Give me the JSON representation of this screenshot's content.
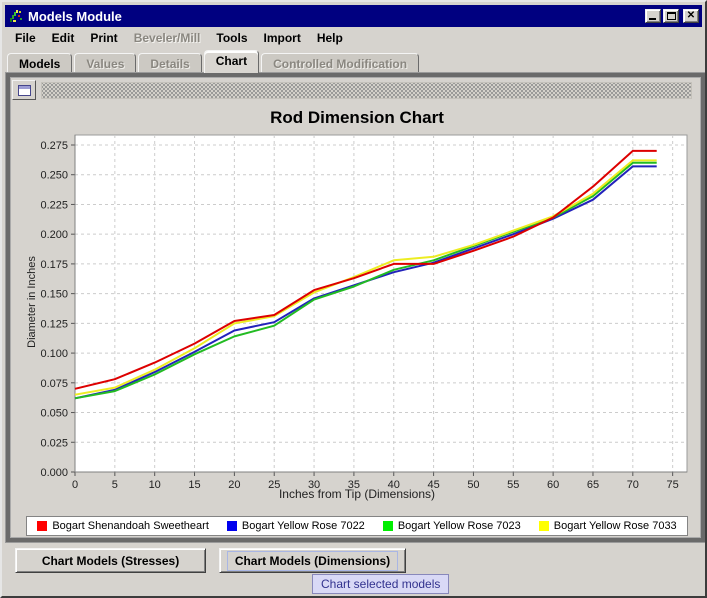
{
  "window": {
    "title": "Models Module"
  },
  "icons": {
    "app": "fly-rod-icon",
    "minimize": "minimize-icon",
    "maximize": "maximize-icon",
    "close_glyph": "✕",
    "toolbar_window": "window-icon"
  },
  "menu": {
    "items": [
      {
        "label": "File",
        "enabled": true
      },
      {
        "label": "Edit",
        "enabled": true
      },
      {
        "label": "Print",
        "enabled": true
      },
      {
        "label": "Beveler/Mill",
        "enabled": false
      },
      {
        "label": "Tools",
        "enabled": true
      },
      {
        "label": "Import",
        "enabled": true
      },
      {
        "label": "Help",
        "enabled": true
      }
    ]
  },
  "tabs": [
    {
      "label": "Models",
      "state": "enabled"
    },
    {
      "label": "Values",
      "state": "disabled"
    },
    {
      "label": "Details",
      "state": "disabled"
    },
    {
      "label": "Chart",
      "state": "active"
    },
    {
      "label": "Controlled Modification",
      "state": "disabled"
    }
  ],
  "chart_data": {
    "type": "line",
    "title": "Rod Dimension Chart",
    "xlabel": "Inches from Tip (Dimensions)",
    "ylabel": "Diameter in Inches",
    "xlim": [
      0,
      76.8
    ],
    "ylim": [
      0,
      0.2834
    ],
    "x_ticks": [
      0,
      5,
      10,
      15,
      20,
      25,
      30,
      35,
      40,
      45,
      50,
      55,
      60,
      65,
      70,
      75
    ],
    "y_ticks": [
      0,
      0.025,
      0.05,
      0.075,
      0.1,
      0.125,
      0.15,
      0.175,
      0.2,
      0.225,
      0.25,
      0.275
    ],
    "grid": "dashed",
    "legend_position": "bottom",
    "x": [
      0,
      5,
      10,
      15,
      20,
      25,
      30,
      35,
      40,
      45,
      50,
      55,
      60,
      65,
      70,
      73
    ],
    "series": [
      {
        "name": "Bogart Shenandoah Sweetheart",
        "color": "#dd0000",
        "legend_color": "#ff0000",
        "values": [
          0.07,
          0.078,
          0.092,
          0.108,
          0.127,
          0.132,
          0.153,
          0.163,
          0.175,
          0.175,
          0.186,
          0.198,
          0.214,
          0.24,
          0.27,
          0.27
        ]
      },
      {
        "name": "Bogart Yellow Rose 7022",
        "color": "#2222bb",
        "legend_color": "#0000ee",
        "values": [
          0.062,
          0.069,
          0.084,
          0.101,
          0.119,
          0.126,
          0.146,
          0.157,
          0.168,
          0.176,
          0.188,
          0.2,
          0.213,
          0.229,
          0.257,
          0.257
        ]
      },
      {
        "name": "Bogart Yellow Rose 7023",
        "color": "#22bb22",
        "legend_color": "#00ee00",
        "values": [
          0.062,
          0.068,
          0.082,
          0.099,
          0.114,
          0.123,
          0.145,
          0.156,
          0.17,
          0.178,
          0.19,
          0.202,
          0.214,
          0.232,
          0.26,
          0.26
        ]
      },
      {
        "name": "Bogart Yellow Rose 7033",
        "color": "#eded22",
        "legend_color": "#ffff00",
        "values": [
          0.065,
          0.071,
          0.086,
          0.104,
          0.125,
          0.131,
          0.151,
          0.164,
          0.178,
          0.181,
          0.191,
          0.203,
          0.215,
          0.234,
          0.262,
          0.262
        ]
      }
    ]
  },
  "buttons": [
    {
      "label": "Chart Models (Stresses)",
      "focused": false
    },
    {
      "label": "Chart Models (Dimensions)",
      "focused": true
    }
  ],
  "tooltip": {
    "text": "Chart selected models"
  }
}
